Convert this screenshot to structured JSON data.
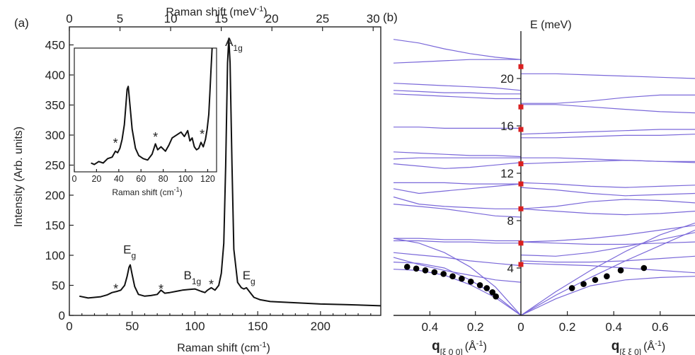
{
  "panel_a_label": "(a)",
  "panel_b_label": "(b)",
  "chart_data": [
    {
      "type": "line",
      "panel": "(a)",
      "xlabel": "Raman shift (cm-1)",
      "xlabel_base": "Raman shift (cm",
      "xlabel_sup": "-1",
      "xlabel_end": ")",
      "x2label": "Raman shift (meV-1)",
      "x2label_base": "Raman shift (meV",
      "x2label_sup": "-1",
      "x2label_end": ")",
      "ylabel": "Intensity (Arb. units)",
      "xlim": [
        0,
        248
      ],
      "x2lim": [
        0,
        30.75
      ],
      "ylim": [
        0,
        480
      ],
      "xticks": [
        0,
        50,
        100,
        150,
        200
      ],
      "x2ticks": [
        0,
        5,
        10,
        15,
        20,
        25,
        30
      ],
      "yticks": [
        0,
        50,
        100,
        150,
        200,
        250,
        300,
        350,
        400,
        450
      ],
      "series": [
        {
          "x": [
            8,
            15,
            20,
            25,
            30,
            34,
            38,
            41,
            44,
            46,
            47.5,
            48.5,
            50,
            52,
            55,
            60,
            65,
            70,
            73,
            76,
            80,
            85,
            90,
            95,
            100,
            105,
            108,
            110,
            113,
            116,
            119,
            121,
            123,
            124.5,
            126,
            127,
            128,
            129.5,
            131,
            134,
            137,
            139,
            141,
            144,
            147,
            152,
            160,
            180,
            200,
            220,
            248
          ],
          "y": [
            32,
            29,
            30,
            31,
            34,
            38,
            40,
            42,
            50,
            65,
            80,
            84,
            68,
            48,
            35,
            32,
            33,
            35,
            42,
            37,
            38,
            40,
            42,
            43,
            44,
            40,
            38,
            42,
            46,
            42,
            50,
            70,
            120,
            250,
            420,
            461,
            420,
            250,
            110,
            55,
            46,
            44,
            46,
            38,
            30,
            26,
            23,
            21,
            19,
            18,
            16
          ]
        }
      ],
      "annotations": [
        {
          "text": "Eg",
          "base": "E",
          "sub": "g",
          "x": 48,
          "y": 103
        },
        {
          "text": "B1g",
          "base": "B",
          "sub": "1g",
          "x": 98,
          "y": 60
        },
        {
          "text": "A1g",
          "base": "A",
          "sub": "1g",
          "x": 131,
          "y": 448
        },
        {
          "text": "Eg",
          "base": "E",
          "sub": "g",
          "x": 143,
          "y": 60
        }
      ],
      "asterisks": [
        {
          "text": "*",
          "x": 37,
          "y": 42
        },
        {
          "text": "*",
          "x": 73,
          "y": 41
        },
        {
          "text": "*",
          "x": 113,
          "y": 49
        }
      ]
    },
    {
      "type": "line",
      "panel": "inset",
      "xlabel": "Raman shift (cm-1)",
      "xlabel_base": "Raman shift (cm",
      "xlabel_sup": "-1",
      "xlabel_end": ")",
      "xlim": [
        0,
        128
      ],
      "ylim": [
        26,
        110
      ],
      "xticks": [
        0,
        20,
        40,
        60,
        80,
        100,
        120
      ],
      "series": [
        {
          "x": [
            15,
            18,
            22,
            26,
            30,
            34,
            37,
            39,
            41,
            43,
            45,
            46.5,
            47.5,
            48.5,
            50,
            52,
            55,
            58,
            62,
            66,
            70,
            73,
            75,
            78,
            82,
            85,
            88,
            92,
            96,
            99,
            102,
            104,
            106,
            108,
            110,
            112,
            114,
            116,
            118,
            119.5,
            121,
            122,
            123,
            124
          ],
          "y": [
            32,
            31,
            33,
            32,
            35,
            36,
            40,
            39,
            42,
            48,
            58,
            72,
            82,
            84,
            72,
            55,
            42,
            37,
            35,
            34,
            38,
            45,
            41,
            43,
            40,
            44,
            49,
            51,
            53,
            50,
            54,
            47,
            49,
            43,
            41,
            42,
            46,
            43,
            48,
            55,
            65,
            80,
            95,
            110
          ]
        }
      ],
      "asterisks": [
        {
          "text": "*",
          "x": 37,
          "y": 44
        },
        {
          "text": "*",
          "x": 73,
          "y": 48
        },
        {
          "text": "*",
          "x": 115,
          "y": 50
        }
      ]
    },
    {
      "type": "line",
      "panel": "(b)",
      "ylabel": "E (meV)",
      "ylim": [
        0,
        24
      ],
      "yticks": [
        4,
        8,
        12,
        16,
        20
      ],
      "left_xlabel": "q[ξ 0 0] (Å-1)",
      "left_xlabel_q": "q",
      "left_xlabel_sub": "[ξ 0 0]",
      "left_xlabel_unit": "(Å",
      "left_xlabel_sup": "-1",
      "left_xlabel_end": ")",
      "right_xlabel": "q[ξ ξ 0] (Å-1)",
      "right_xlabel_q": "q",
      "right_xlabel_sub": "[ξ ξ 0]",
      "right_xlabel_unit": "(Å",
      "right_xlabel_sup": "-1",
      "right_xlabel_end": ")",
      "left_xlim": [
        0.56,
        0
      ],
      "right_xlim": [
        0,
        0.75
      ],
      "left_xticks": [
        0.4,
        0.2,
        0
      ],
      "right_xticks": [
        0.2,
        0.4,
        0.6
      ],
      "zone_center_modes": [
        4.3,
        6.1,
        9.0,
        11.1,
        12.8,
        15.7,
        17.6,
        21.0
      ],
      "branches_left": [
        [
          23.3,
          23.0,
          22.5,
          22.1,
          21.8,
          21.6
        ],
        [
          21.3,
          21.4,
          21.5,
          21.6,
          21.6,
          21.6
        ],
        [
          19.6,
          19.5,
          19.4,
          19.3,
          19.2,
          19.0
        ],
        [
          19.0,
          18.9,
          18.8,
          18.8,
          18.7,
          18.7
        ],
        [
          18.7,
          18.6,
          18.5,
          18.4,
          18.3,
          18.3
        ],
        [
          15.9,
          15.9,
          15.8,
          15.8,
          15.8,
          15.8
        ],
        [
          13.8,
          13.7,
          13.6,
          13.5,
          13.5,
          13.4
        ],
        [
          13.2,
          13.3,
          13.3,
          13.3,
          13.3,
          13.3
        ],
        [
          12.8,
          12.6,
          12.4,
          12.5,
          12.7,
          12.9
        ],
        [
          11.2,
          11.2,
          11.2,
          11.1,
          11.1,
          11.1
        ],
        [
          10.7,
          10.3,
          10.5,
          10.7,
          10.9,
          11.1
        ],
        [
          10.0,
          9.4,
          9.2,
          9.1,
          9.0,
          9.0
        ],
        [
          9.4,
          9.2,
          9.0,
          8.7,
          8.4,
          8.3
        ],
        [
          6.5,
          6.5,
          6.4,
          6.4,
          6.3,
          6.3
        ],
        [
          6.3,
          6.3,
          6.2,
          6.2,
          6.1,
          6.1
        ],
        [
          5.3,
          5.1,
          4.9,
          4.6,
          4.4,
          4.2
        ],
        [
          4.9,
          4.3,
          3.8,
          3.4,
          3.0,
          2.8
        ],
        [
          6.5,
          6.1,
          5.3,
          4.1,
          2.4,
          0
        ],
        [
          4.5,
          4.4,
          4.0,
          3.0,
          1.7,
          0
        ],
        [
          3.9,
          3.8,
          3.4,
          2.6,
          1.5,
          0
        ]
      ],
      "branches_right": [
        [
          20.4,
          20.4,
          20.3,
          20.2,
          20.1,
          20.0
        ],
        [
          17.9,
          17.9,
          18.1,
          18.4,
          18.6,
          18.6
        ],
        [
          17.8,
          17.8,
          17.6,
          17.4,
          17.2,
          17.1
        ],
        [
          15.3,
          15.4,
          15.5,
          15.6,
          15.7,
          15.7
        ],
        [
          15.0,
          15.0,
          15.1,
          15.2,
          15.2,
          15.3
        ],
        [
          13.3,
          13.3,
          13.2,
          13.1,
          13.0,
          13.0
        ],
        [
          12.8,
          12.9,
          13.0,
          13.1,
          13.0,
          12.9
        ],
        [
          11.2,
          11.1,
          10.9,
          10.8,
          10.9,
          11.0
        ],
        [
          10.8,
          10.6,
          10.3,
          10.1,
          10.2,
          10.3
        ],
        [
          9.0,
          9.2,
          9.6,
          9.8,
          9.7,
          9.5
        ],
        [
          9.0,
          8.8,
          8.6,
          8.5,
          8.6,
          8.8
        ],
        [
          6.2,
          6.3,
          6.5,
          6.8,
          7.2,
          7.6
        ],
        [
          6.2,
          6.1,
          6.0,
          6.0,
          6.1,
          6.2
        ],
        [
          5.1,
          5.0,
          5.3,
          5.8,
          6.4,
          7.0
        ],
        [
          4.6,
          4.5,
          4.5,
          4.6,
          4.8,
          5.0
        ],
        [
          4.4,
          4.3,
          4.2,
          4.0,
          3.8,
          3.6
        ],
        [
          0,
          2.0,
          3.8,
          5.4,
          6.8,
          7.8
        ],
        [
          0,
          1.7,
          3.2,
          4.6,
          5.9,
          7.2
        ],
        [
          0,
          1.4,
          2.5,
          3.0,
          3.2,
          3.3
        ]
      ],
      "points_left": {
        "x": [
          0.5,
          0.46,
          0.42,
          0.38,
          0.34,
          0.3,
          0.26,
          0.22,
          0.18,
          0.15,
          0.125,
          0.11
        ],
        "y": [
          4.1,
          3.95,
          3.8,
          3.65,
          3.5,
          3.3,
          3.1,
          2.85,
          2.55,
          2.3,
          1.95,
          1.6
        ]
      },
      "points_right": {
        "x": [
          0.22,
          0.27,
          0.32,
          0.37,
          0.43,
          0.53
        ],
        "y": [
          2.3,
          2.65,
          3.0,
          3.3,
          3.8,
          4.0
        ]
      }
    }
  ]
}
